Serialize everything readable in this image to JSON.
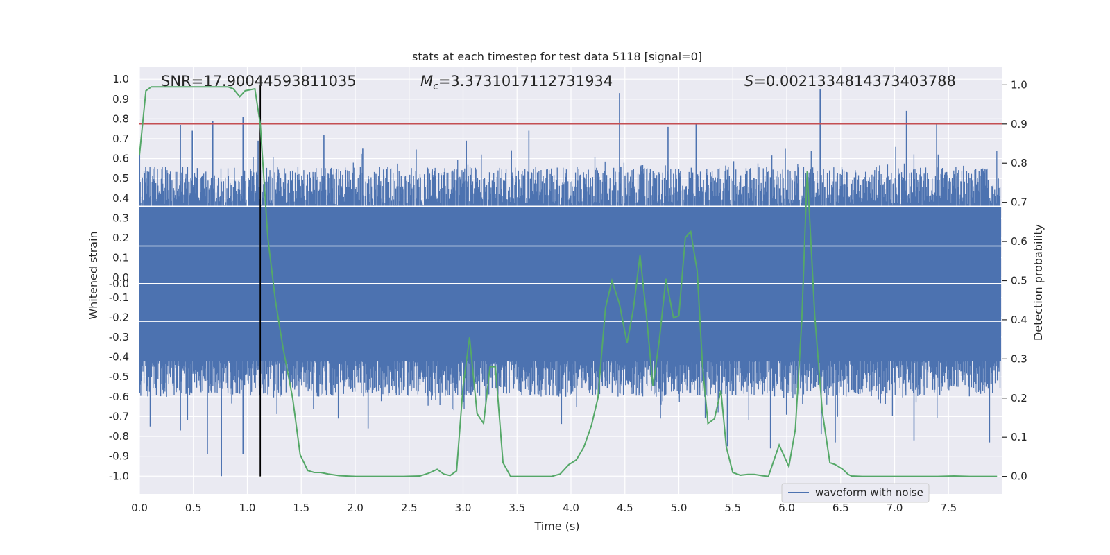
{
  "colors": {
    "background": "#eaeaf2",
    "grid": "#ffffff",
    "waveform": "#4c72b0",
    "probability": "#55a868",
    "threshold": "#c44e52",
    "marker": "#000000",
    "text": "#262626"
  },
  "chart_data": {
    "type": "line",
    "title": "stats at each timestep for test data 5118 [signal=0]",
    "xlabel": "Time (s)",
    "ylabel_left": "Whitened strain",
    "ylabel_right": "Detection probability",
    "xlim": [
      0.0,
      8.0
    ],
    "ylim_left": [
      -1.09,
      1.06
    ],
    "ylim_right": [
      -0.045,
      1.045
    ],
    "xticks": [
      "0.0",
      "0.5",
      "1.0",
      "1.5",
      "2.0",
      "2.5",
      "3.0",
      "3.5",
      "4.0",
      "4.5",
      "5.0",
      "5.5",
      "6.0",
      "6.5",
      "7.0",
      "7.5"
    ],
    "xtick_values": [
      0.0,
      0.5,
      1.0,
      1.5,
      2.0,
      2.5,
      3.0,
      3.5,
      4.0,
      4.5,
      5.0,
      5.5,
      6.0,
      6.5,
      7.0,
      7.5
    ],
    "yticks_left": [
      "1.0",
      "0.9",
      "0.8",
      "0.7",
      "0.6",
      "0.5",
      "0.4",
      "0.3",
      "0.2",
      "0.1",
      "0.0",
      "-0.0",
      "-0.1",
      "-0.2",
      "-0.3",
      "-0.4",
      "-0.5",
      "-0.6",
      "-0.7",
      "-0.8",
      "-0.9",
      "-1.0"
    ],
    "yticks_left_values": [
      1.0,
      0.9,
      0.8,
      0.7,
      0.6,
      0.5,
      0.4,
      0.3,
      0.2,
      0.1,
      0.0,
      -0.03,
      -0.1,
      -0.2,
      -0.3,
      -0.4,
      -0.5,
      -0.6,
      -0.7,
      -0.8,
      -0.9,
      -1.0
    ],
    "yticks_right": [
      "1.0",
      "0.9",
      "0.8",
      "0.7",
      "0.6",
      "0.5",
      "0.4",
      "0.3",
      "0.2",
      "0.1",
      "0.0"
    ],
    "yticks_right_values": [
      1.0,
      0.9,
      0.8,
      0.7,
      0.6,
      0.5,
      0.4,
      0.3,
      0.2,
      0.1,
      0.0
    ],
    "annotations": {
      "snr": "SNR=17.90044593811035",
      "mc_symbol": "M",
      "mc_sub": "c",
      "mc_value": "=3.3731017112731934",
      "s_symbol": "S",
      "s_value": "=0.0021334814373403788"
    },
    "legend": "waveform with noise",
    "threshold_probability": 0.9,
    "marker_time": 1.12,
    "waveform": {
      "name": "waveform with noise",
      "description": "dense whitened strain noise, core band roughly -0.42 to +0.36 with occasional spikes",
      "peak_spikes": [
        {
          "t": 0.38,
          "v": 0.77
        },
        {
          "t": 0.49,
          "v": 0.74
        },
        {
          "t": 0.68,
          "v": 0.79
        },
        {
          "t": 0.96,
          "v": 0.81
        },
        {
          "t": 1.1,
          "v": 0.69
        },
        {
          "t": 1.71,
          "v": 0.72
        },
        {
          "t": 2.07,
          "v": 0.65
        },
        {
          "t": 3.03,
          "v": 0.69
        },
        {
          "t": 3.61,
          "v": 0.74
        },
        {
          "t": 4.45,
          "v": 0.93
        },
        {
          "t": 4.9,
          "v": 0.76
        },
        {
          "t": 5.16,
          "v": 0.78
        },
        {
          "t": 6.31,
          "v": 0.95
        },
        {
          "t": 7.11,
          "v": 0.84
        },
        {
          "t": 7.39,
          "v": 0.78
        }
      ],
      "trough_spikes": [
        {
          "t": 0.1,
          "v": -0.75
        },
        {
          "t": 0.38,
          "v": -0.77
        },
        {
          "t": 0.63,
          "v": -0.89
        },
        {
          "t": 0.76,
          "v": -1.0
        },
        {
          "t": 0.96,
          "v": -0.89
        },
        {
          "t": 2.12,
          "v": -0.76
        },
        {
          "t": 5.45,
          "v": -0.85
        },
        {
          "t": 5.85,
          "v": -0.86
        },
        {
          "t": 6.32,
          "v": -0.79
        },
        {
          "t": 6.45,
          "v": -0.83
        },
        {
          "t": 7.18,
          "v": -0.82
        },
        {
          "t": 7.88,
          "v": -0.83
        }
      ]
    },
    "probability": {
      "name": "detection probability",
      "t": [
        0.0,
        0.06,
        0.11,
        0.2,
        0.4,
        0.6,
        0.75,
        0.82,
        0.87,
        0.93,
        0.98,
        1.07,
        1.12,
        1.19,
        1.26,
        1.33,
        1.42,
        1.49,
        1.56,
        1.62,
        1.68,
        1.75,
        1.85,
        2.0,
        2.15,
        2.3,
        2.45,
        2.6,
        2.68,
        2.76,
        2.82,
        2.88,
        2.94,
        3.0,
        3.06,
        3.13,
        3.19,
        3.25,
        3.3,
        3.37,
        3.44,
        3.55,
        3.7,
        3.82,
        3.9,
        3.98,
        4.05,
        4.12,
        4.19,
        4.25,
        4.32,
        4.38,
        4.45,
        4.52,
        4.58,
        4.64,
        4.7,
        4.76,
        4.82,
        4.88,
        4.95,
        5.0,
        5.06,
        5.11,
        5.17,
        5.22,
        5.27,
        5.33,
        5.39,
        5.44,
        5.5,
        5.57,
        5.64,
        5.7,
        5.77,
        5.83,
        5.93,
        6.02,
        6.08,
        6.14,
        6.19,
        6.26,
        6.33,
        6.4,
        6.45,
        6.52,
        6.57,
        6.6,
        6.7,
        6.85,
        7.0,
        7.2,
        7.4,
        7.55,
        7.7,
        7.85,
        7.95
      ],
      "p": [
        0.82,
        0.985,
        0.995,
        0.995,
        0.995,
        0.995,
        0.995,
        0.995,
        0.99,
        0.97,
        0.985,
        0.99,
        0.9,
        0.61,
        0.45,
        0.33,
        0.2,
        0.055,
        0.015,
        0.01,
        0.01,
        0.006,
        0.002,
        0.0,
        0.0,
        0.0,
        0.0,
        0.001,
        0.008,
        0.018,
        0.006,
        0.002,
        0.014,
        0.23,
        0.355,
        0.16,
        0.135,
        0.28,
        0.28,
        0.035,
        0.0,
        0.0,
        0.0,
        0.0,
        0.006,
        0.03,
        0.042,
        0.075,
        0.13,
        0.2,
        0.43,
        0.5,
        0.44,
        0.34,
        0.43,
        0.565,
        0.41,
        0.23,
        0.35,
        0.505,
        0.405,
        0.41,
        0.61,
        0.625,
        0.525,
        0.28,
        0.135,
        0.147,
        0.22,
        0.075,
        0.01,
        0.003,
        0.005,
        0.005,
        0.002,
        0.0,
        0.08,
        0.025,
        0.12,
        0.4,
        0.78,
        0.41,
        0.165,
        0.035,
        0.03,
        0.018,
        0.005,
        0.001,
        0.0,
        0.0,
        0.0,
        0.0,
        0.0,
        0.001,
        0.0,
        0.0,
        0.0
      ]
    }
  }
}
